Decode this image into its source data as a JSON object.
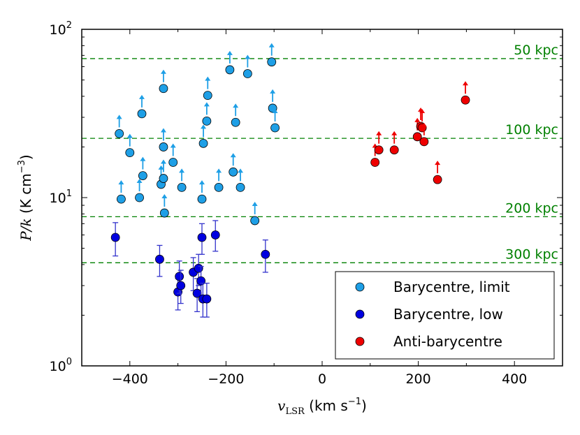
{
  "chart_data": {
    "type": "scatter",
    "xlabel": {
      "var": "v",
      "sub": "LSR",
      "unit": " (km s",
      "unit_sup": "−1",
      "unit_close": ")"
    },
    "ylabel": {
      "var": "P/k",
      "unit": " (K cm",
      "unit_sup": "−3",
      "unit_close": ")"
    },
    "xlim": [
      -500,
      500
    ],
    "ylim": [
      1,
      100
    ],
    "yscale": "log",
    "xticks": [
      -400,
      -200,
      0,
      200,
      400
    ],
    "xtick_labels": [
      "−400",
      "−200",
      "0",
      "200",
      "400"
    ],
    "yticks": [
      {
        "value": 1,
        "base": "10",
        "exp": "0"
      },
      {
        "value": 10,
        "base": "10",
        "exp": "1"
      },
      {
        "value": 100,
        "base": "10",
        "exp": "2"
      }
    ],
    "grid": false,
    "legend_position": "lower-right",
    "reference_lines": [
      {
        "y": 67,
        "label": "50 kpc"
      },
      {
        "y": 22.5,
        "label": "100 kpc"
      },
      {
        "y": 7.7,
        "label": "200 kpc"
      },
      {
        "y": 4.1,
        "label": "300 kpc"
      }
    ],
    "series": [
      {
        "name": "Barycentre, limit",
        "color": "#1e9fe6",
        "kind": "lower-limit",
        "points": [
          {
            "x": -418,
            "y": 9.8
          },
          {
            "x": -422,
            "y": 24
          },
          {
            "x": -400,
            "y": 18.5
          },
          {
            "x": -380,
            "y": 10
          },
          {
            "x": -375,
            "y": 31.5
          },
          {
            "x": -373,
            "y": 13.5
          },
          {
            "x": -335,
            "y": 12
          },
          {
            "x": -330,
            "y": 13
          },
          {
            "x": -330,
            "y": 44.5
          },
          {
            "x": -330,
            "y": 20
          },
          {
            "x": -328,
            "y": 8.1
          },
          {
            "x": -310,
            "y": 16.2
          },
          {
            "x": -292,
            "y": 11.5
          },
          {
            "x": -250,
            "y": 9.8
          },
          {
            "x": -247,
            "y": 21
          },
          {
            "x": -240,
            "y": 28.5
          },
          {
            "x": -238,
            "y": 40.5
          },
          {
            "x": -215,
            "y": 11.5
          },
          {
            "x": -192,
            "y": 57.5
          },
          {
            "x": -185,
            "y": 14.2
          },
          {
            "x": -180,
            "y": 28
          },
          {
            "x": -170,
            "y": 11.5
          },
          {
            "x": -155,
            "y": 54.5
          },
          {
            "x": -140,
            "y": 7.3
          },
          {
            "x": -105,
            "y": 64
          },
          {
            "x": -103,
            "y": 34
          },
          {
            "x": -98,
            "y": 26
          }
        ]
      },
      {
        "name": "Barycentre, low",
        "color": "#0000e0",
        "errcolor": "#3333cc",
        "kind": "errorbar",
        "points": [
          {
            "x": -430,
            "y": 5.8,
            "lo": 4.5,
            "hi": 7.1
          },
          {
            "x": -338,
            "y": 4.3,
            "lo": 3.4,
            "hi": 5.2
          },
          {
            "x": -300,
            "y": 2.75,
            "lo": 2.15,
            "hi": 3.3
          },
          {
            "x": -297,
            "y": 3.4,
            "lo": 2.7,
            "hi": 4.2
          },
          {
            "x": -294,
            "y": 3.0,
            "lo": 2.35,
            "hi": 3.7
          },
          {
            "x": -268,
            "y": 3.6,
            "lo": 2.8,
            "hi": 4.4
          },
          {
            "x": -260,
            "y": 2.7,
            "lo": 2.1,
            "hi": 3.3
          },
          {
            "x": -257,
            "y": 3.8,
            "lo": 3.0,
            "hi": 4.6
          },
          {
            "x": -252,
            "y": 3.2,
            "lo": 2.5,
            "hi": 3.9
          },
          {
            "x": -250,
            "y": 5.8,
            "lo": 4.6,
            "hi": 7.0
          },
          {
            "x": -248,
            "y": 2.5,
            "lo": 1.95,
            "hi": 3.1
          },
          {
            "x": -240,
            "y": 2.5,
            "lo": 1.95,
            "hi": 3.1
          },
          {
            "x": -222,
            "y": 6.0,
            "lo": 4.8,
            "hi": 7.3
          },
          {
            "x": -118,
            "y": 4.6,
            "lo": 3.6,
            "hi": 5.6
          }
        ]
      },
      {
        "name": "Anti-barycentre",
        "color": "#ee0000",
        "kind": "lower-limit",
        "points": [
          {
            "x": 110,
            "y": 16.2
          },
          {
            "x": 118,
            "y": 19.2
          },
          {
            "x": 150,
            "y": 19.2
          },
          {
            "x": 198,
            "y": 23
          },
          {
            "x": 205,
            "y": 26.5
          },
          {
            "x": 208,
            "y": 26
          },
          {
            "x": 212,
            "y": 21.5
          },
          {
            "x": 240,
            "y": 12.8
          },
          {
            "x": 298,
            "y": 38
          }
        ]
      }
    ]
  }
}
